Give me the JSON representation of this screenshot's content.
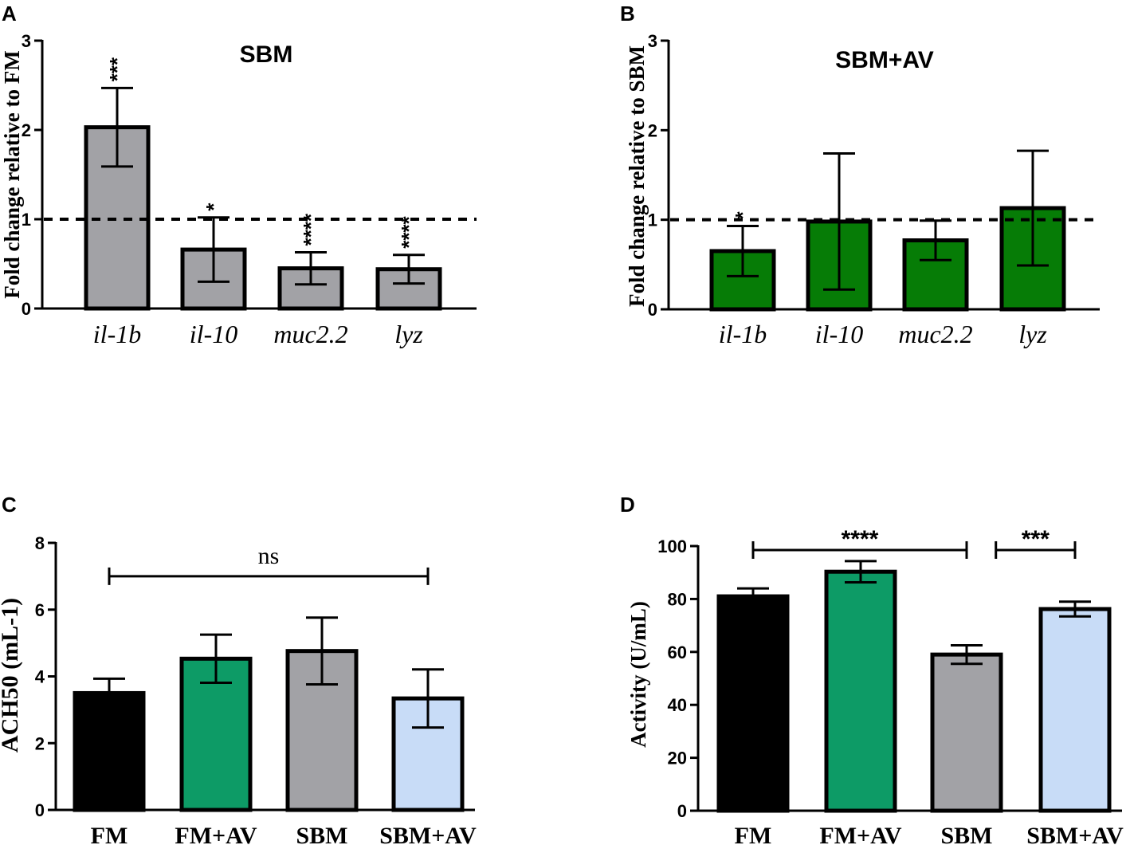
{
  "colors": {
    "gray": "#a2a2a6",
    "green": "#067c06",
    "black": "#000000",
    "teal": "#0d9b66",
    "lightblue": "#c8dcf7"
  },
  "chart_data": [
    {
      "id": "A",
      "type": "bar",
      "panel_letter": "A",
      "title": "SBM",
      "ylabel": "Fold change relative to FM",
      "xlabel": "",
      "ylim": [
        0,
        3
      ],
      "yticks": [
        "0",
        "1",
        "2",
        "3"
      ],
      "categories": [
        "il-1b",
        "il-10",
        "muc2.2",
        "lyz"
      ],
      "values": [
        2.03,
        0.66,
        0.45,
        0.44
      ],
      "errors": [
        0.44,
        0.36,
        0.18,
        0.16
      ],
      "significance": [
        "***",
        "*",
        "****",
        "****"
      ],
      "reference_line": 1.0,
      "bar_colors": [
        "gray",
        "gray",
        "gray",
        "gray"
      ]
    },
    {
      "id": "B",
      "type": "bar",
      "panel_letter": "B",
      "title": "SBM+AV",
      "ylabel": "Fold change relative to SBM",
      "xlabel": "",
      "ylim": [
        0,
        3
      ],
      "yticks": [
        "0",
        "1",
        "2",
        "3"
      ],
      "categories": [
        "il-1b",
        "il-10",
        "muc2.2",
        "lyz"
      ],
      "values": [
        0.65,
        0.98,
        0.77,
        1.13
      ],
      "errors": [
        0.28,
        0.76,
        0.22,
        0.64
      ],
      "significance": [
        "*",
        "",
        "",
        ""
      ],
      "reference_line": 1.0,
      "bar_colors": [
        "green",
        "green",
        "green",
        "green"
      ]
    },
    {
      "id": "C",
      "type": "bar",
      "panel_letter": "C",
      "title": "",
      "ylabel": "ACH50 (mL-1)",
      "xlabel": "",
      "ylim": [
        0,
        8
      ],
      "yticks": [
        "0",
        "2",
        "4",
        "6",
        "8"
      ],
      "categories": [
        "FM",
        "FM+AV",
        "SBM",
        "SBM+AV"
      ],
      "values": [
        3.5,
        4.53,
        4.76,
        3.34
      ],
      "errors": [
        0.43,
        0.72,
        1.0,
        0.87
      ],
      "bar_colors": [
        "black",
        "teal",
        "gray",
        "lightblue"
      ],
      "brackets": [
        {
          "from": 0,
          "to": 3,
          "label": "ns",
          "y": 7.0
        }
      ]
    },
    {
      "id": "D",
      "type": "bar",
      "panel_letter": "D",
      "title": "",
      "ylabel": "Activity (U/mL)",
      "xlabel": "",
      "ylim": [
        0,
        100
      ],
      "yticks": [
        "0",
        "20",
        "40",
        "60",
        "80",
        "100"
      ],
      "categories": [
        "FM",
        "FM+AV",
        "SBM",
        "SBM+AV"
      ],
      "values": [
        81.0,
        90.3,
        59.0,
        76.2
      ],
      "errors": [
        3.0,
        4.0,
        3.5,
        2.8
      ],
      "bar_colors": [
        "black",
        "teal",
        "gray",
        "lightblue"
      ],
      "brackets": [
        {
          "from": 0,
          "to": 2,
          "label": "****",
          "y": 98.5
        },
        {
          "from": 2.27,
          "to": 3,
          "label": "***",
          "y": 98.5
        }
      ]
    }
  ]
}
